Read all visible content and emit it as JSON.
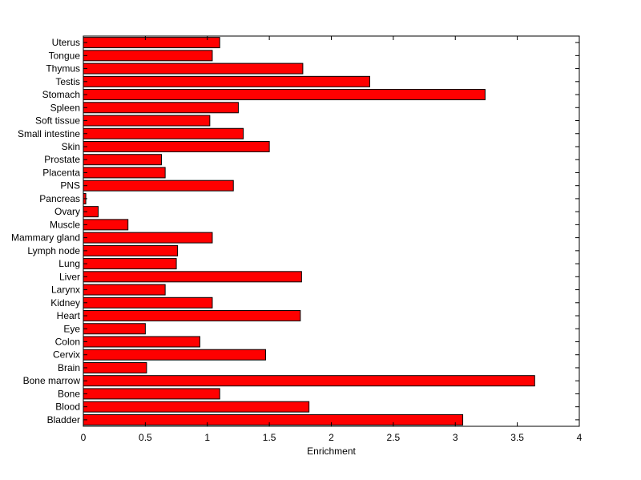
{
  "chart_data": {
    "type": "bar",
    "orientation": "horizontal",
    "title": "",
    "xlabel": "Enrichment",
    "ylabel": "",
    "xlim": [
      0,
      4
    ],
    "xticks": [
      "0",
      "0.5",
      "1",
      "1.5",
      "2",
      "2.5",
      "3",
      "3.5",
      "4"
    ],
    "grid": false,
    "bar_color": "#ff0000",
    "bar_edge_color": "#000000",
    "categories": [
      "Bladder",
      "Blood",
      "Bone",
      "Bone marrow",
      "Brain",
      "Cervix",
      "Colon",
      "Eye",
      "Heart",
      "Kidney",
      "Larynx",
      "Liver",
      "Lung",
      "Lymph node",
      "Mammary gland",
      "Muscle",
      "Ovary",
      "Pancreas",
      "PNS",
      "Placenta",
      "Prostate",
      "Skin",
      "Small intestine",
      "Soft tissue",
      "Spleen",
      "Stomach",
      "Testis",
      "Thymus",
      "Tongue",
      "Uterus"
    ],
    "values": [
      3.06,
      1.82,
      1.1,
      3.64,
      0.51,
      1.47,
      0.94,
      0.5,
      1.75,
      1.04,
      0.66,
      1.76,
      0.75,
      0.76,
      1.04,
      0.36,
      0.12,
      0.02,
      1.21,
      0.66,
      0.63,
      1.5,
      1.29,
      1.02,
      1.25,
      3.24,
      2.31,
      1.77,
      1.04,
      1.1
    ]
  }
}
